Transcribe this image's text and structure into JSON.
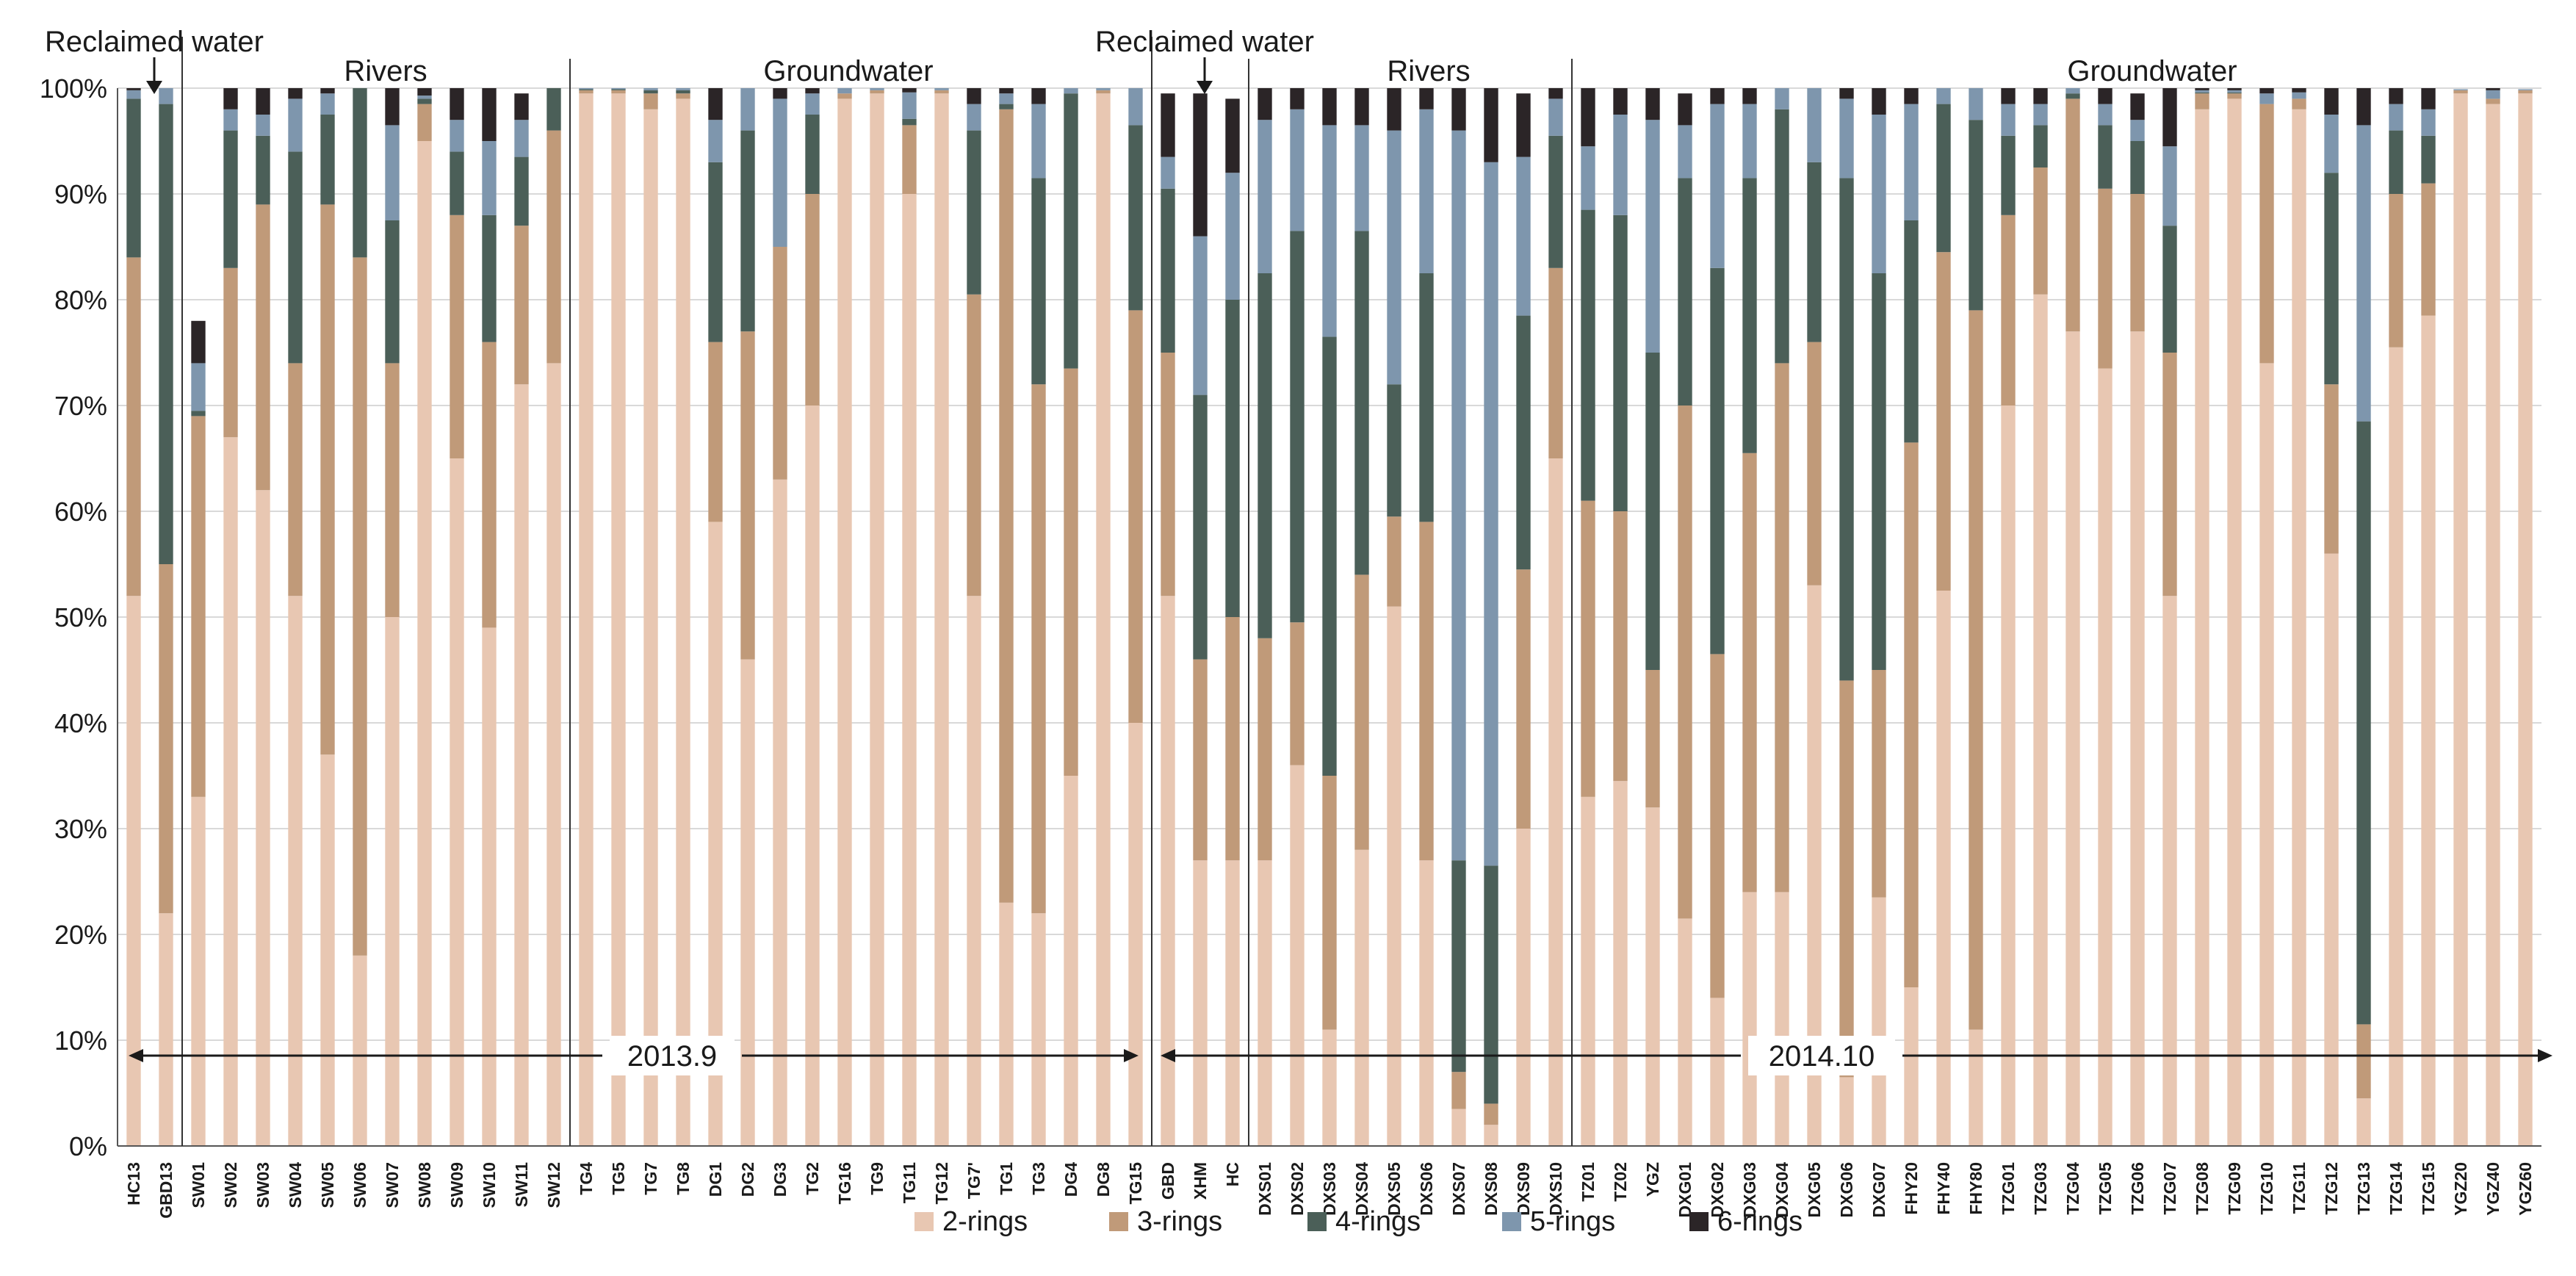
{
  "chart_data": {
    "type": "bar",
    "stacked": true,
    "normalized": true,
    "ylim": [
      0,
      100
    ],
    "yticks": [
      "0%",
      "10%",
      "20%",
      "30%",
      "40%",
      "50%",
      "60%",
      "70%",
      "80%",
      "90%",
      "100%"
    ],
    "xlabel": "",
    "ylabel": "",
    "grid": true,
    "legend": [
      "2-rings",
      "3-rings",
      "4-rings",
      "5-rings",
      "6-rings"
    ],
    "colors": {
      "2-rings": "#e8c7b2",
      "3-rings": "#c09a79",
      "4-rings": "#4b5f58",
      "5-rings": "#7e96ad",
      "6-rings": "#2b2527",
      "text": "#1a1a1a",
      "axis": "#555555",
      "grid": "#d9d9d9",
      "divider": "#333333"
    },
    "categories": [
      "HC13",
      "GBD13",
      "SW01",
      "SW02",
      "SW03",
      "SW04",
      "SW05",
      "SW06",
      "SW07",
      "SW08",
      "SW09",
      "SW10",
      "SW11",
      "SW12",
      "TG4",
      "TG5",
      "TG7",
      "TG8",
      "DG1",
      "DG2",
      "DG3",
      "TG2",
      "TG16",
      "TG9",
      "TG11",
      "TG12",
      "TG7'",
      "TG1",
      "TG3",
      "DG4",
      "DG8",
      "TG15",
      "GBD",
      "XHM",
      "HC",
      "DXS01",
      "DXS02",
      "DXS03",
      "DXS04",
      "DXS05",
      "DXS06",
      "DXS07",
      "DXS08",
      "DXS09",
      "DXS10",
      "TZ01",
      "TZ02",
      "YGZ",
      "DXG01",
      "DXG02",
      "DXG03",
      "DXG04",
      "DXG05",
      "DXG06",
      "DXG07",
      "FHY20",
      "FHY40",
      "FHY80",
      "TZG01",
      "TZG03",
      "TZG04",
      "TZG05",
      "TZG06",
      "TZG07",
      "TZG08",
      "TZG09",
      "TZG10",
      "TZG11",
      "TZG12",
      "TZG13",
      "TZG14",
      "TZG15",
      "YGZ20",
      "YGZ40",
      "YGZ60"
    ],
    "series": [
      {
        "name": "2-rings",
        "values": [
          52,
          22,
          33,
          67,
          62,
          52,
          37,
          18,
          50,
          95,
          65,
          49,
          72,
          74,
          99.5,
          99.5,
          98,
          99,
          59,
          46,
          63,
          70,
          99,
          99.5,
          90,
          99.5,
          52,
          23,
          22,
          35,
          99.5,
          40,
          52,
          27,
          27,
          27,
          36,
          11,
          28,
          51,
          27,
          3.5,
          2,
          30,
          65,
          33,
          34.5,
          32,
          21.5,
          14,
          24,
          24,
          53,
          6.5,
          23.5,
          15,
          52.5,
          11,
          70,
          80.5,
          77,
          73.5,
          77,
          52,
          98,
          99,
          74,
          98,
          56,
          4.5,
          75.5,
          78.5,
          99.5,
          98.5,
          99.5
        ]
      },
      {
        "name": "3-rings",
        "values": [
          32,
          33,
          36,
          16,
          27,
          22,
          52,
          66,
          24,
          3.5,
          23,
          27,
          15,
          22,
          0.3,
          0.3,
          1.5,
          0.5,
          17,
          31,
          22,
          20,
          0.5,
          0.3,
          6.5,
          0.3,
          28.5,
          75,
          50,
          38.5,
          0.3,
          39,
          23,
          19,
          23,
          21,
          13.5,
          24,
          26,
          8.5,
          32,
          3.5,
          2,
          24.5,
          18,
          28,
          25.5,
          13,
          48.5,
          32.5,
          41.5,
          50,
          23,
          37.5,
          21.5,
          51.5,
          32,
          68,
          18,
          12,
          22,
          17,
          13,
          23,
          1.5,
          0.5,
          24.5,
          1,
          16,
          7,
          14.5,
          12.5,
          0.3,
          0.5,
          0.3
        ]
      },
      {
        "name": "4-rings",
        "values": [
          15,
          43.5,
          0.5,
          13,
          6.5,
          20,
          8.5,
          16,
          13.5,
          0.5,
          6,
          12,
          6.5,
          4,
          0.1,
          0.1,
          0.3,
          0.3,
          17,
          19,
          0,
          7.5,
          0,
          0,
          0.6,
          0,
          15.5,
          0.5,
          19.5,
          26,
          0,
          17.5,
          15.5,
          25,
          30,
          34.5,
          37,
          41.5,
          32.5,
          12.5,
          23.5,
          20,
          22.5,
          24,
          12.5,
          27.5,
          28,
          30,
          21.5,
          36.5,
          26,
          24,
          17,
          47.5,
          37.5,
          21,
          14,
          18,
          7.5,
          4,
          0.5,
          6,
          5,
          12,
          0.1,
          0.1,
          0,
          0,
          20,
          57,
          6,
          4.5,
          0,
          0,
          0
        ]
      },
      {
        "name": "5-rings",
        "values": [
          0.8,
          1.5,
          4.5,
          2,
          2,
          5,
          2,
          0.3,
          9,
          0.3,
          3,
          7,
          3.5,
          0.3,
          0.1,
          0.1,
          0.2,
          0.2,
          4,
          4,
          14,
          2,
          0.5,
          0.2,
          2.5,
          0.2,
          2.5,
          1,
          7,
          0.5,
          0.2,
          3.5,
          3,
          15,
          12,
          14.5,
          11.5,
          20,
          10,
          24,
          15.5,
          69,
          66.5,
          15,
          3.5,
          6,
          9.5,
          22,
          5,
          15.5,
          7,
          2.5,
          7,
          7.5,
          15,
          11,
          3,
          3,
          3,
          2,
          0.5,
          2,
          2,
          7.5,
          0.2,
          0.2,
          1,
          0.6,
          5.5,
          28,
          2.5,
          2.5,
          0.1,
          0.8,
          0.1
        ]
      },
      {
        "name": "6-rings",
        "values": [
          0.2,
          0,
          4,
          2,
          2.5,
          1,
          0.5,
          0,
          3.5,
          0.7,
          3,
          5,
          2.5,
          0,
          0,
          0,
          0,
          0,
          3,
          0,
          1,
          0.5,
          0,
          0,
          0.4,
          0,
          1.5,
          0.5,
          1.5,
          0,
          0,
          0,
          6,
          13.5,
          7,
          3,
          2,
          3.5,
          3.5,
          4,
          2,
          4,
          7,
          6,
          1.5,
          5.5,
          2.5,
          3,
          3,
          1.5,
          1.5,
          0,
          0,
          1,
          2.5,
          1.5,
          0,
          0,
          1.5,
          1.5,
          0,
          1.5,
          2.5,
          5.5,
          0.2,
          0.2,
          0.5,
          0.4,
          2.5,
          3.5,
          2,
          2,
          0,
          0.2,
          0
        ]
      }
    ],
    "annotations": {
      "period_2013": "2013.9",
      "period_2014": "2014.10",
      "reclaimed_water_2013": "Reclaimed water",
      "rivers_2013": "Rivers",
      "groundwater_2013": "Groundwater",
      "reclaimed_water_2014": "Reclaimed water",
      "rivers_2014": "Rivers",
      "groundwater_2014": "Groundwater"
    }
  }
}
